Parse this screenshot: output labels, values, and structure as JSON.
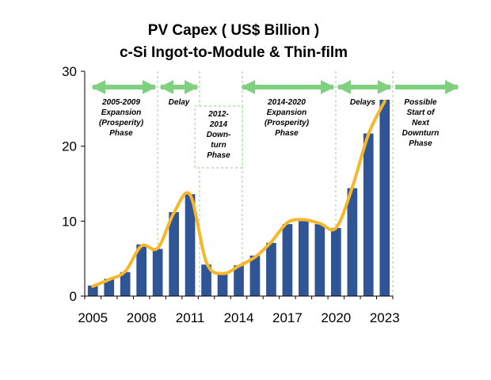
{
  "chart_data": {
    "type": "bar",
    "title": "PV Capex ( US$ Billion )",
    "subtitle": "c-Si Ingot-to-Module & Thin-film",
    "xlabel": "",
    "ylabel": "",
    "ylim": [
      0,
      30
    ],
    "yticks": [
      "0",
      "10",
      "20",
      "30"
    ],
    "xticks": [
      "2005",
      "2008",
      "2011",
      "2014",
      "2017",
      "2020",
      "2023"
    ],
    "categories": [
      "2005",
      "2006",
      "2007",
      "2008",
      "2009",
      "2010",
      "2011",
      "2012",
      "2013",
      "2014",
      "2015",
      "2016",
      "2017",
      "2018",
      "2019",
      "2020",
      "2021",
      "2022",
      "2023"
    ],
    "values": [
      1.4,
      2.3,
      3.2,
      6.9,
      6.3,
      11.2,
      13.6,
      4.2,
      3.0,
      4.1,
      5.4,
      7.1,
      9.6,
      10.0,
      9.6,
      9.1,
      14.4,
      21.7,
      26.2
    ],
    "trend_line": {
      "style": "smooth",
      "color": "#f6b82a",
      "values": [
        1.3,
        2.2,
        3.3,
        6.7,
        6.4,
        11.1,
        13.5,
        4.5,
        3.0,
        4.0,
        5.2,
        7.2,
        9.8,
        10.2,
        9.7,
        9.1,
        14.5,
        21.6,
        26.0
      ]
    },
    "colors": {
      "bar": "#2f5597",
      "trend": "#f6b82a",
      "arrow": "#7fd07f",
      "phase_line": "#8fd38f"
    },
    "phases": [
      {
        "label": [
          "2005-2009",
          "Expansion",
          "(Prosperity)",
          "Phase"
        ],
        "boxed": false,
        "arrow": "double"
      },
      {
        "label": [
          "Delay"
        ],
        "boxed": false,
        "arrow": "double"
      },
      {
        "label": [
          "2012-",
          "2014",
          "Down-",
          "turn",
          "Phase"
        ],
        "boxed": true,
        "arrow": "none"
      },
      {
        "label": [
          "2014-2020",
          "Expansion",
          "(Prosperity)",
          "Phase"
        ],
        "boxed": false,
        "arrow": "double"
      },
      {
        "label": [
          "Delays"
        ],
        "boxed": false,
        "arrow": "double"
      },
      {
        "label": [
          "Possible",
          "Start of",
          "Next",
          "Downturn",
          "Phase"
        ],
        "boxed": false,
        "arrow": "right"
      }
    ],
    "grid": false,
    "legend": "none"
  }
}
